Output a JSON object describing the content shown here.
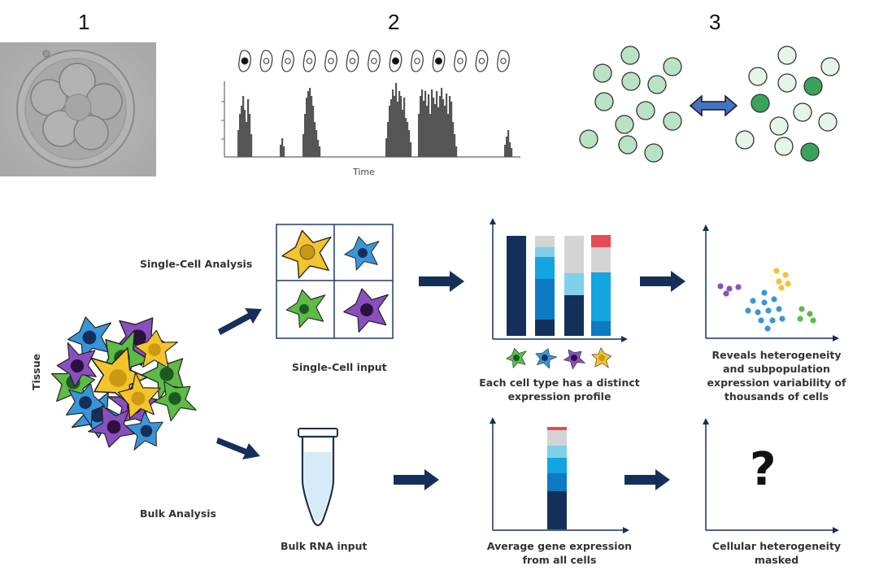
{
  "panels": {
    "p1": "1",
    "p2": "2",
    "p3": "3"
  },
  "timecourse": {
    "xlabel": "Time"
  },
  "tissue_label": "Tissue",
  "single_cell": {
    "row_label": "Single-Cell Analysis",
    "input_label": "Single-Cell input",
    "profile_caption": [
      "Each cell type has a distinct",
      "expression profile"
    ],
    "result_caption": [
      "Reveals heterogeneity",
      "and subpopulation",
      "expression variability of",
      "thousands of cells"
    ]
  },
  "bulk": {
    "row_label": "Bulk Analysis",
    "input_label": "Bulk RNA input",
    "profile_caption": [
      "Average gene expression",
      "from all cells"
    ],
    "result_symbol": "?",
    "result_caption": [
      "Cellular heterogeneity",
      "masked"
    ]
  },
  "colors": {
    "navy": "#14305a",
    "blue": "#0d7ac4",
    "sky": "#12a5e0",
    "light_sky": "#7fd0e8",
    "gray": "#d4d4d4",
    "red": "#e84b55",
    "yellow": "#f5c42c",
    "cell_blue": "#3a95d8",
    "green": "#5dbb46",
    "purple": "#8a4fbf",
    "pale_green": "#b9e3c4",
    "dark_green": "#3aa35a"
  },
  "icons": [
    "embryo-micrograph",
    "cell-icon",
    "double-arrow-icon",
    "right-arrow-icon",
    "tube-icon",
    "star-cell-icon"
  ]
}
